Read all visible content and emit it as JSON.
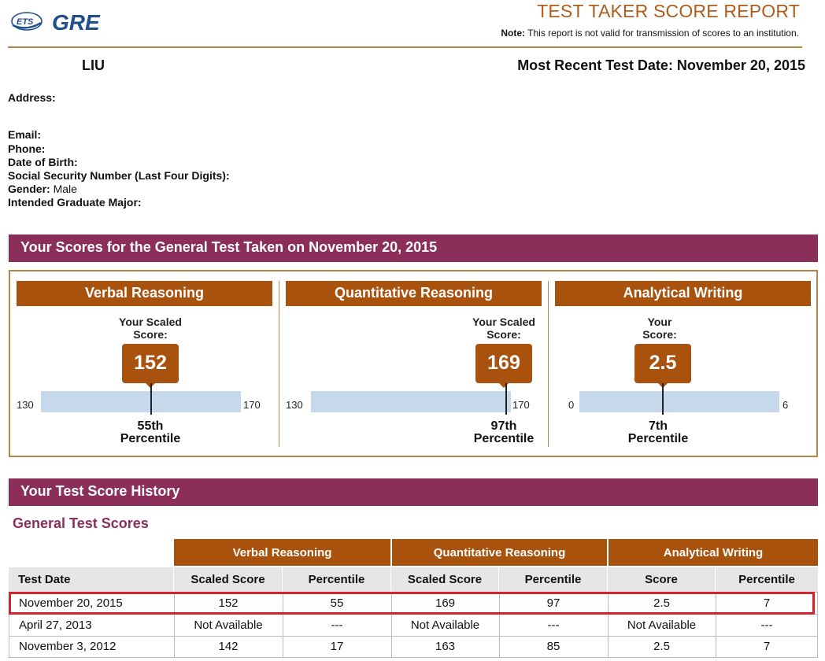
{
  "header": {
    "logo_ets": "ETS",
    "logo_gre": "GRE",
    "report_title": "TEST TAKER SCORE REPORT",
    "note_label": "Note:",
    "note_text": " This report is not valid for transmission of scores to an institution."
  },
  "candidate": {
    "name": "LIU",
    "recent_date": "Most Recent Test Date: November 20, 2015",
    "fields": [
      {
        "label": "Address:",
        "value": ""
      },
      {
        "label": "Email:",
        "value": ""
      },
      {
        "label": "Phone:",
        "value": ""
      },
      {
        "label": "Date of Birth:",
        "value": ""
      },
      {
        "label": "Social Security Number (Last Four Digits):",
        "value": ""
      },
      {
        "label": "Gender:",
        "value": " Male"
      },
      {
        "label": "Intended Graduate Major:",
        "value": ""
      }
    ]
  },
  "scores_section": {
    "title": "Your Scores for the General Test Taken on November 20, 2015",
    "panels": [
      {
        "title": "Verbal Reasoning",
        "label_line1": "Your Scaled",
        "label_line2": "Score:",
        "score": "152",
        "score_value": 152,
        "min": "130",
        "max": "170",
        "min_value": 130,
        "max_value": 170,
        "pct_line1": "55th",
        "pct_line2": "Percentile"
      },
      {
        "title": "Quantitative Reasoning",
        "label_line1": "Your Scaled",
        "label_line2": "Score:",
        "score": "169",
        "score_value": 169,
        "min": "130",
        "max": "170",
        "min_value": 130,
        "max_value": 170,
        "pct_line1": "97th",
        "pct_line2": "Percentile"
      },
      {
        "title": "Analytical Writing",
        "label_line1": "Your",
        "label_line2": "Score:",
        "score": "2.5",
        "score_value": 2.5,
        "min": "0",
        "max": "6",
        "min_value": 0,
        "max_value": 6,
        "pct_line1": "7th",
        "pct_line2": "Percentile"
      }
    ]
  },
  "history": {
    "title": "Your Test Score History",
    "subtitle": "General Test Scores",
    "groups": [
      "Verbal Reasoning",
      "Quantitative Reasoning",
      "Analytical Writing"
    ],
    "columns": [
      "Test Date",
      "Scaled Score",
      "Percentile",
      "Scaled Score",
      "Percentile",
      "Score",
      "Percentile"
    ],
    "rows": [
      [
        "November 20, 2015",
        "152",
        "55",
        "169",
        "97",
        "2.5",
        "7"
      ],
      [
        "April 27, 2013",
        "Not Available",
        "---",
        "Not Available",
        "---",
        "Not Available",
        "---"
      ],
      [
        "November 3, 2012",
        "142",
        "17",
        "163",
        "85",
        "2.5",
        "7"
      ]
    ]
  },
  "colors": {
    "brand_purple": "#8b2e59",
    "brand_orange": "#a9520e",
    "title_orange": "#b05c1c",
    "scale_blue": "#c5d8ec",
    "highlight_red": "#d4232d",
    "ets_blue": "#1f4e8c"
  }
}
